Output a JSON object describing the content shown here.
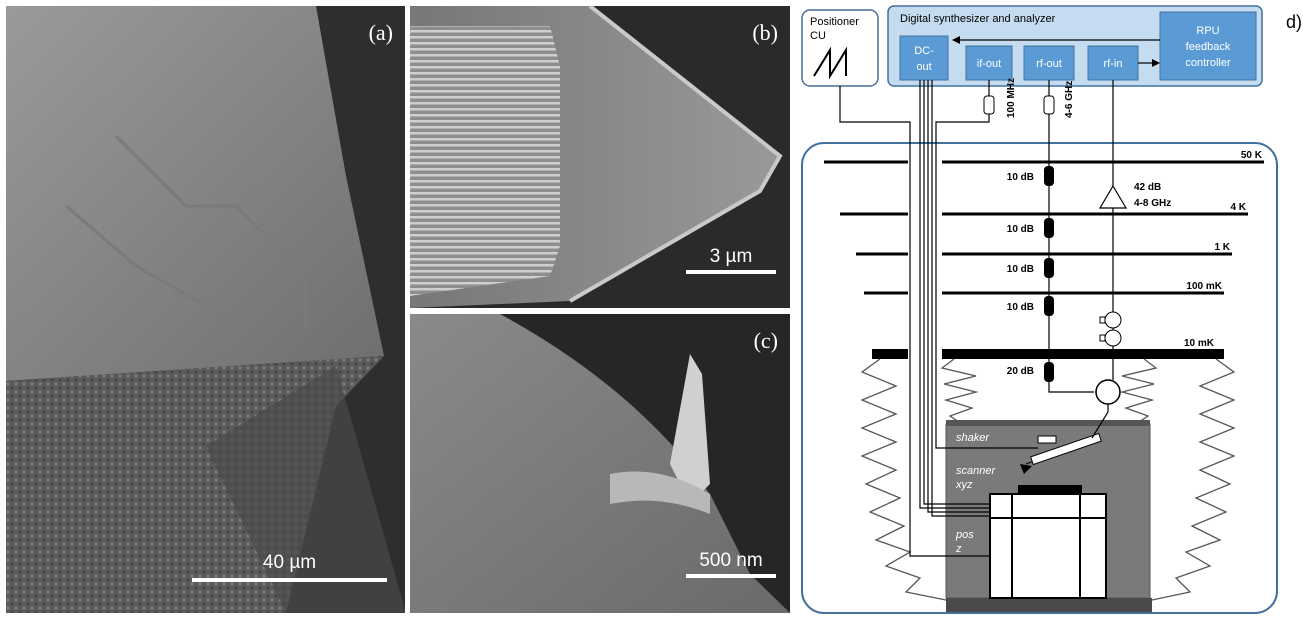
{
  "panel_a": {
    "label": "(a)",
    "scale_text": "40 µm"
  },
  "panel_b": {
    "label": "(b)",
    "scale_text": "3 µm"
  },
  "panel_c": {
    "label": "(c)",
    "scale_text": "500 nm"
  },
  "diagram": {
    "panel_label": "d)",
    "positioner": {
      "line1": "Positioner",
      "line2": "CU"
    },
    "synth_title": "Digital synthesizer and analyzer",
    "blocks": {
      "dc_out": {
        "line1": "DC-",
        "line2": "out"
      },
      "if_out": "if-out",
      "rf_out": "rf-out",
      "rf_in": "rf-in",
      "rpu": {
        "line1": "RPU",
        "line2": "feedback",
        "line3": "controller"
      }
    },
    "filters": {
      "if": "100 MHz",
      "rf": "4-6 GHz"
    },
    "stages": [
      "50 K",
      "4 K",
      "1 K",
      "100 mK",
      "10 mK"
    ],
    "attenuators": [
      "10 dB",
      "10 dB",
      "10 dB",
      "10 dB",
      "20 dB"
    ],
    "amplifier": {
      "gain": "42 dB",
      "band": "4-8 GHz"
    },
    "labels": {
      "shaker": "shaker",
      "scanner": "scanner",
      "scanner_axes": "xyz",
      "pos": "pos",
      "pos_axis": "z"
    },
    "colors": {
      "block_fill": "#5b9bd5",
      "synth_fill": "#c5dcf0",
      "border": "#41719c",
      "chamber": "#7a7a7a"
    }
  }
}
